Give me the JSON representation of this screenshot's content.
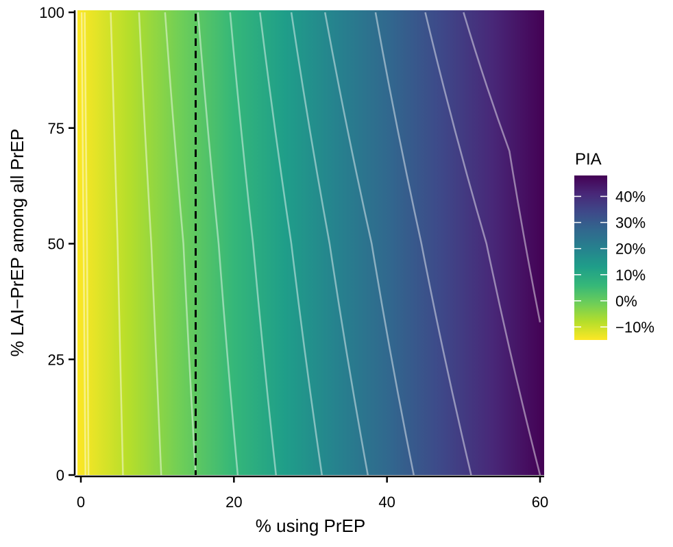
{
  "chart_data": {
    "type": "heatmap",
    "title": "",
    "xlabel": "% using PrEP",
    "ylabel": "% LAI−PrEP among all PrEP",
    "xlim": [
      0,
      60
    ],
    "ylim": [
      0,
      100
    ],
    "x_ticks": [
      0,
      20,
      40,
      60
    ],
    "x_tick_labels": [
      "0",
      "20",
      "40",
      "60"
    ],
    "y_ticks": [
      0,
      25,
      50,
      75,
      100
    ],
    "y_tick_labels": [
      "0",
      "25",
      "50",
      "75",
      "100"
    ],
    "grid": false,
    "reference_line": {
      "x": 15,
      "style": "dashed"
    },
    "legend": {
      "title": "PIA",
      "placement": "right",
      "range": [
        -15,
        48
      ],
      "ticks": [
        -10,
        0,
        10,
        20,
        30,
        40
      ],
      "tick_labels": [
        "−10%",
        "0%",
        "10%",
        "20%",
        "30%",
        "40%"
      ]
    },
    "colorscale": [
      "#fde725",
      "#b5de2b",
      "#6ece58",
      "#35b779",
      "#1f9e89",
      "#26828e",
      "#31688e",
      "#3e4989",
      "#482878",
      "#440154"
    ],
    "contour_line_color": "#ffffff",
    "contours": [
      {
        "level": -15,
        "points": [
          [
            0.6,
            0
          ],
          [
            0.1,
            100
          ]
        ]
      },
      {
        "level": -10,
        "points": [
          [
            1.0,
            0
          ],
          [
            0.8,
            50
          ],
          [
            0.5,
            100
          ]
        ]
      },
      {
        "level": -5,
        "points": [
          [
            5.5,
            0
          ],
          [
            4.8,
            50
          ],
          [
            3.9,
            100
          ]
        ]
      },
      {
        "level": 0,
        "points": [
          [
            10.5,
            0
          ],
          [
            9.2,
            50
          ],
          [
            7.6,
            100
          ]
        ]
      },
      {
        "level": 5,
        "points": [
          [
            15.0,
            0
          ],
          [
            13.4,
            50
          ],
          [
            11.0,
            100
          ]
        ]
      },
      {
        "level": 10,
        "points": [
          [
            20.5,
            0
          ],
          [
            18.0,
            50
          ],
          [
            15.3,
            100
          ]
        ]
      },
      {
        "level": 15,
        "points": [
          [
            25.5,
            0
          ],
          [
            22.5,
            50
          ],
          [
            19.5,
            100
          ]
        ]
      },
      {
        "level": 20,
        "points": [
          [
            31.5,
            0
          ],
          [
            27.5,
            50
          ],
          [
            23.4,
            100
          ]
        ]
      },
      {
        "level": 25,
        "points": [
          [
            37.5,
            0
          ],
          [
            32.5,
            50
          ],
          [
            27.5,
            100
          ]
        ]
      },
      {
        "level": 30,
        "points": [
          [
            43.5,
            0
          ],
          [
            38.0,
            50
          ],
          [
            31.9,
            100
          ]
        ]
      },
      {
        "level": 35,
        "points": [
          [
            51.0,
            0
          ],
          [
            44.5,
            50
          ],
          [
            38.5,
            100
          ]
        ]
      },
      {
        "level": 40,
        "points": [
          [
            60.0,
            0
          ],
          [
            53.0,
            50
          ],
          [
            45.0,
            100
          ]
        ]
      },
      {
        "level": 45,
        "points": [
          [
            60.0,
            33
          ],
          [
            56.0,
            70
          ],
          [
            50.0,
            100
          ]
        ]
      }
    ]
  }
}
